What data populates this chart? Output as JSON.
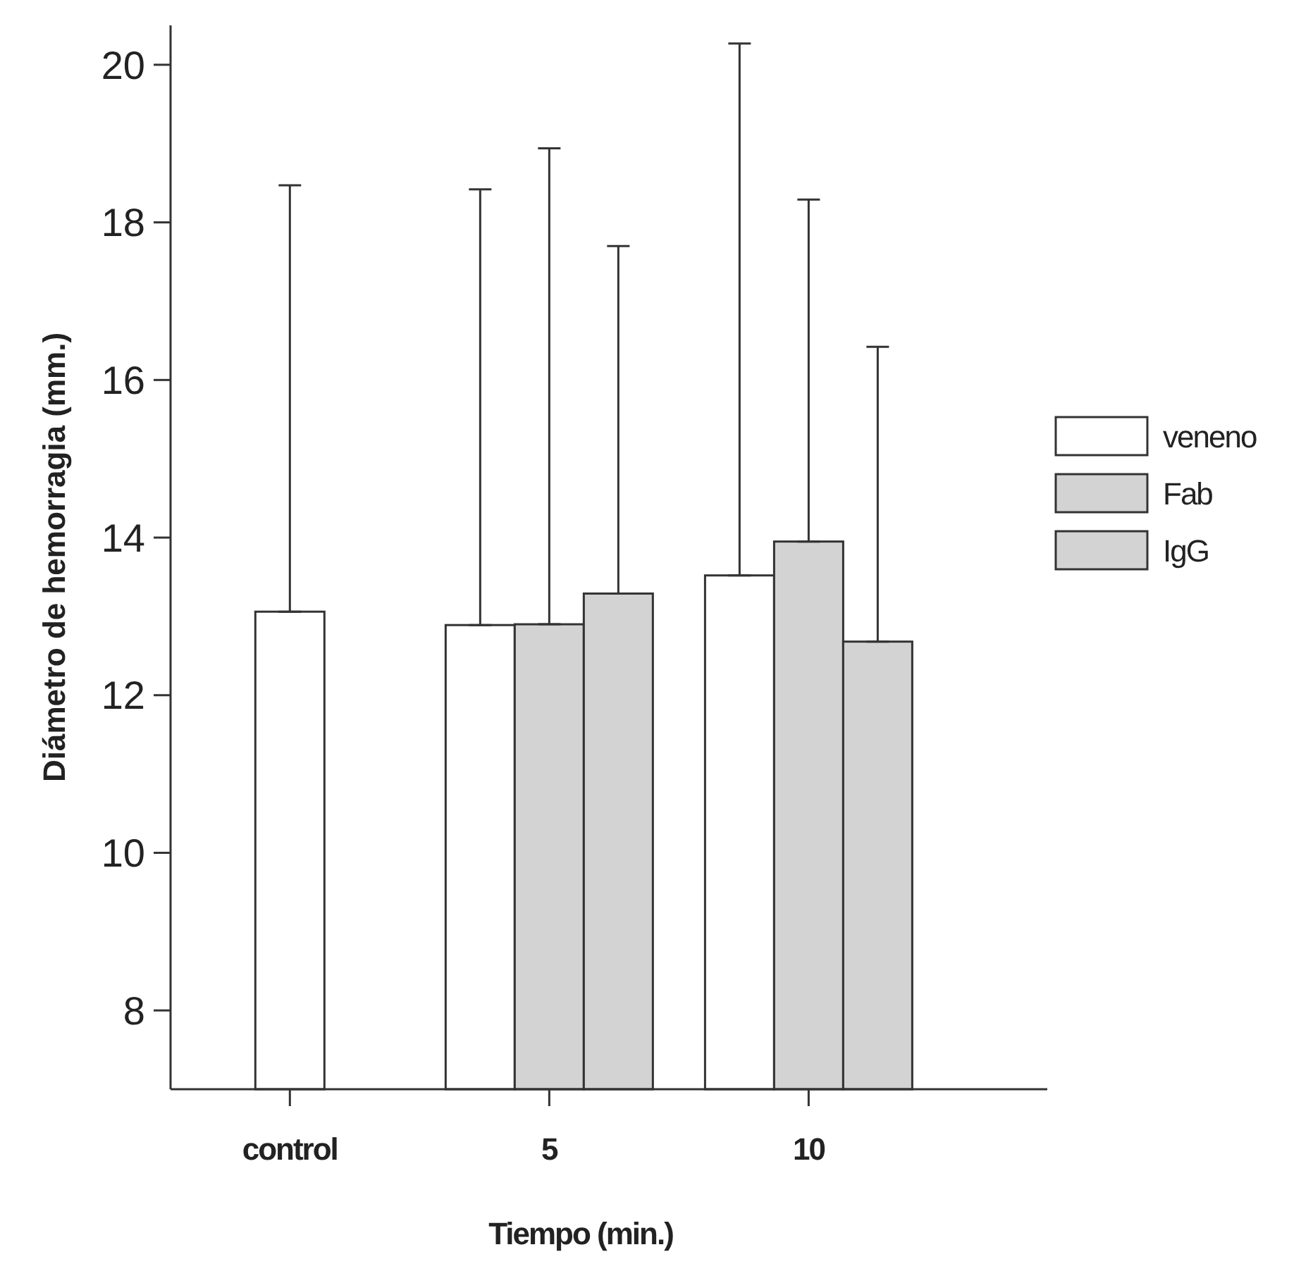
{
  "chart_data": {
    "type": "bar",
    "xlabel": "Tiempo (min.)",
    "ylabel": "Diámetro de hemorragia (mm.)",
    "categories": [
      "control",
      "5",
      "10"
    ],
    "series": [
      {
        "name": "veneno",
        "color": "#ffffff",
        "values": [
          13.06,
          12.89,
          13.52
        ],
        "errors": [
          [
            13.06,
            18.47
          ],
          [
            12.89,
            18.42
          ],
          [
            13.52,
            20.27
          ]
        ]
      },
      {
        "name": "Fab",
        "color": "#d3d3d3",
        "values": [
          null,
          12.9,
          13.95
        ],
        "errors": [
          null,
          [
            12.9,
            18.94
          ],
          [
            13.95,
            18.29
          ]
        ]
      },
      {
        "name": "IgG",
        "color": "#d3d3d3",
        "values": [
          null,
          13.29,
          12.68
        ],
        "errors": [
          null,
          [
            13.29,
            17.7
          ],
          [
            12.68,
            16.42
          ]
        ]
      }
    ],
    "ylim": [
      7,
      20.5
    ],
    "yticks": [
      8,
      10,
      12,
      14,
      16,
      18,
      20
    ],
    "grid": false,
    "legend": "right"
  }
}
